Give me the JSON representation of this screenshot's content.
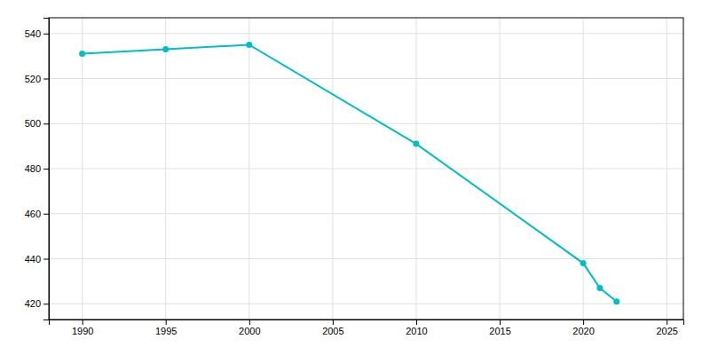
{
  "chart_data": {
    "type": "line",
    "x": [
      1990,
      1995,
      2000,
      2010,
      2020,
      2021,
      2022
    ],
    "values": [
      531,
      533,
      535,
      491,
      438,
      427,
      421
    ],
    "color": "#00BEC4",
    "marker": "circle",
    "xlim": [
      1988,
      2026
    ],
    "ylim": [
      413,
      547
    ],
    "xticks": [
      1990,
      1995,
      2000,
      2005,
      2010,
      2015,
      2020,
      2025
    ],
    "yticks": [
      420,
      440,
      460,
      480,
      500,
      520,
      540
    ],
    "grid": true
  }
}
